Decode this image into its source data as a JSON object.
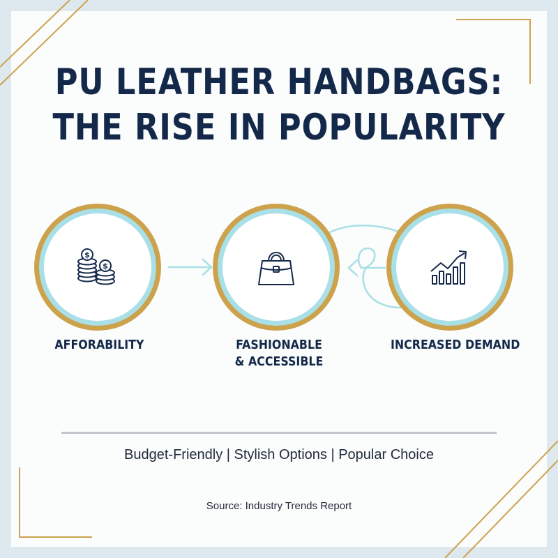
{
  "title": {
    "line1": "PU LEATHER HANDBAGS:",
    "line2": "THE RISE IN POPULARITY"
  },
  "steps": [
    {
      "icon": "coin-stacks-icon",
      "label": "AFFORABILITY"
    },
    {
      "icon": "handbag-icon",
      "label_line1": "FASHIONABLE",
      "label_line2": "& ACCESSIBLE"
    },
    {
      "icon": "rising-bar-chart-icon",
      "label": "INCREASED DEMAND"
    }
  ],
  "tagline": "Budget-Friendly | Stylish Options | Popular Choice",
  "source": "Source: Industry Trends Report",
  "colors": {
    "navy": "#14294a",
    "gold": "#cda24c",
    "light_blue": "#a9dfe6",
    "background": "#dde9ef"
  }
}
